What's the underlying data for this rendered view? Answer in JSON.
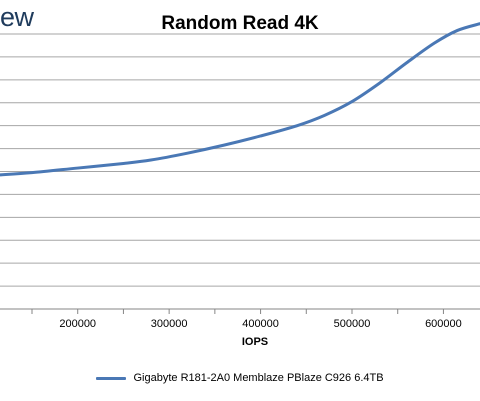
{
  "header": {
    "logo_text": "ew"
  },
  "chart_data": {
    "type": "line",
    "title": "Random Read 4K",
    "xlabel": "IOPS",
    "ylabel": "",
    "x_ticks": [
      200000,
      300000,
      400000,
      500000,
      600000
    ],
    "x_tick_labels": [
      "200000",
      "300000",
      "400000",
      "500000",
      "600000"
    ],
    "xlim": [
      115000,
      640000
    ],
    "ylim": [
      0,
      12
    ],
    "grid": true,
    "legend_position": "bottom",
    "series": [
      {
        "name": "Gigabyte R181-2A0 Memblaze PBlaze C926 6.4TB",
        "color": "#4a78b5",
        "x": [
          115000,
          150000,
          200000,
          250000,
          280000,
          320000,
          360000,
          400000,
          440000,
          470000,
          500000,
          530000,
          560000,
          590000,
          615000,
          640000
        ],
        "y": [
          5.85,
          5.95,
          6.15,
          6.35,
          6.5,
          6.8,
          7.15,
          7.55,
          8.0,
          8.45,
          9.05,
          9.85,
          10.75,
          11.6,
          12.15,
          12.45
        ]
      }
    ]
  }
}
